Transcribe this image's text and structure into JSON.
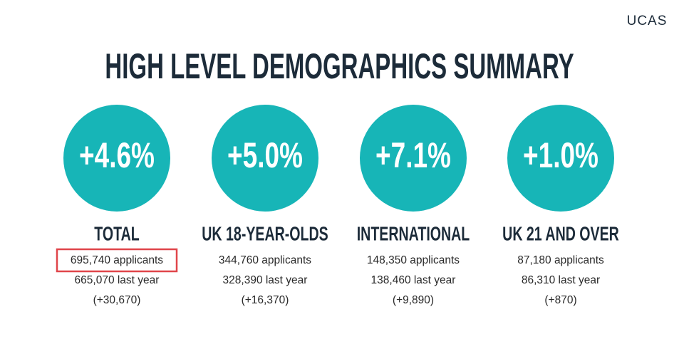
{
  "header": {
    "logo": "UCAS",
    "title": "HIGH LEVEL DEMOGRAPHICS SUMMARY"
  },
  "groups": [
    {
      "change_percent": "+4.6%",
      "label": "TOTAL",
      "applicants": "695,740 applicants",
      "last_year": "665,070 last year",
      "difference": "(+30,670)"
    },
    {
      "change_percent": "+5.0%",
      "label": "UK 18-YEAR-OLDS",
      "applicants": "344,760 applicants",
      "last_year": "328,390 last year",
      "difference": "(+16,370)"
    },
    {
      "change_percent": "+7.1%",
      "label": "INTERNATIONAL",
      "applicants": "148,350 applicants",
      "last_year": "138,460 last year",
      "difference": "(+9,890)"
    },
    {
      "change_percent": "+1.0%",
      "label": "UK 21 AND OVER",
      "applicants": "87,180 applicants",
      "last_year": "86,310 last year",
      "difference": "(+870)"
    }
  ]
}
